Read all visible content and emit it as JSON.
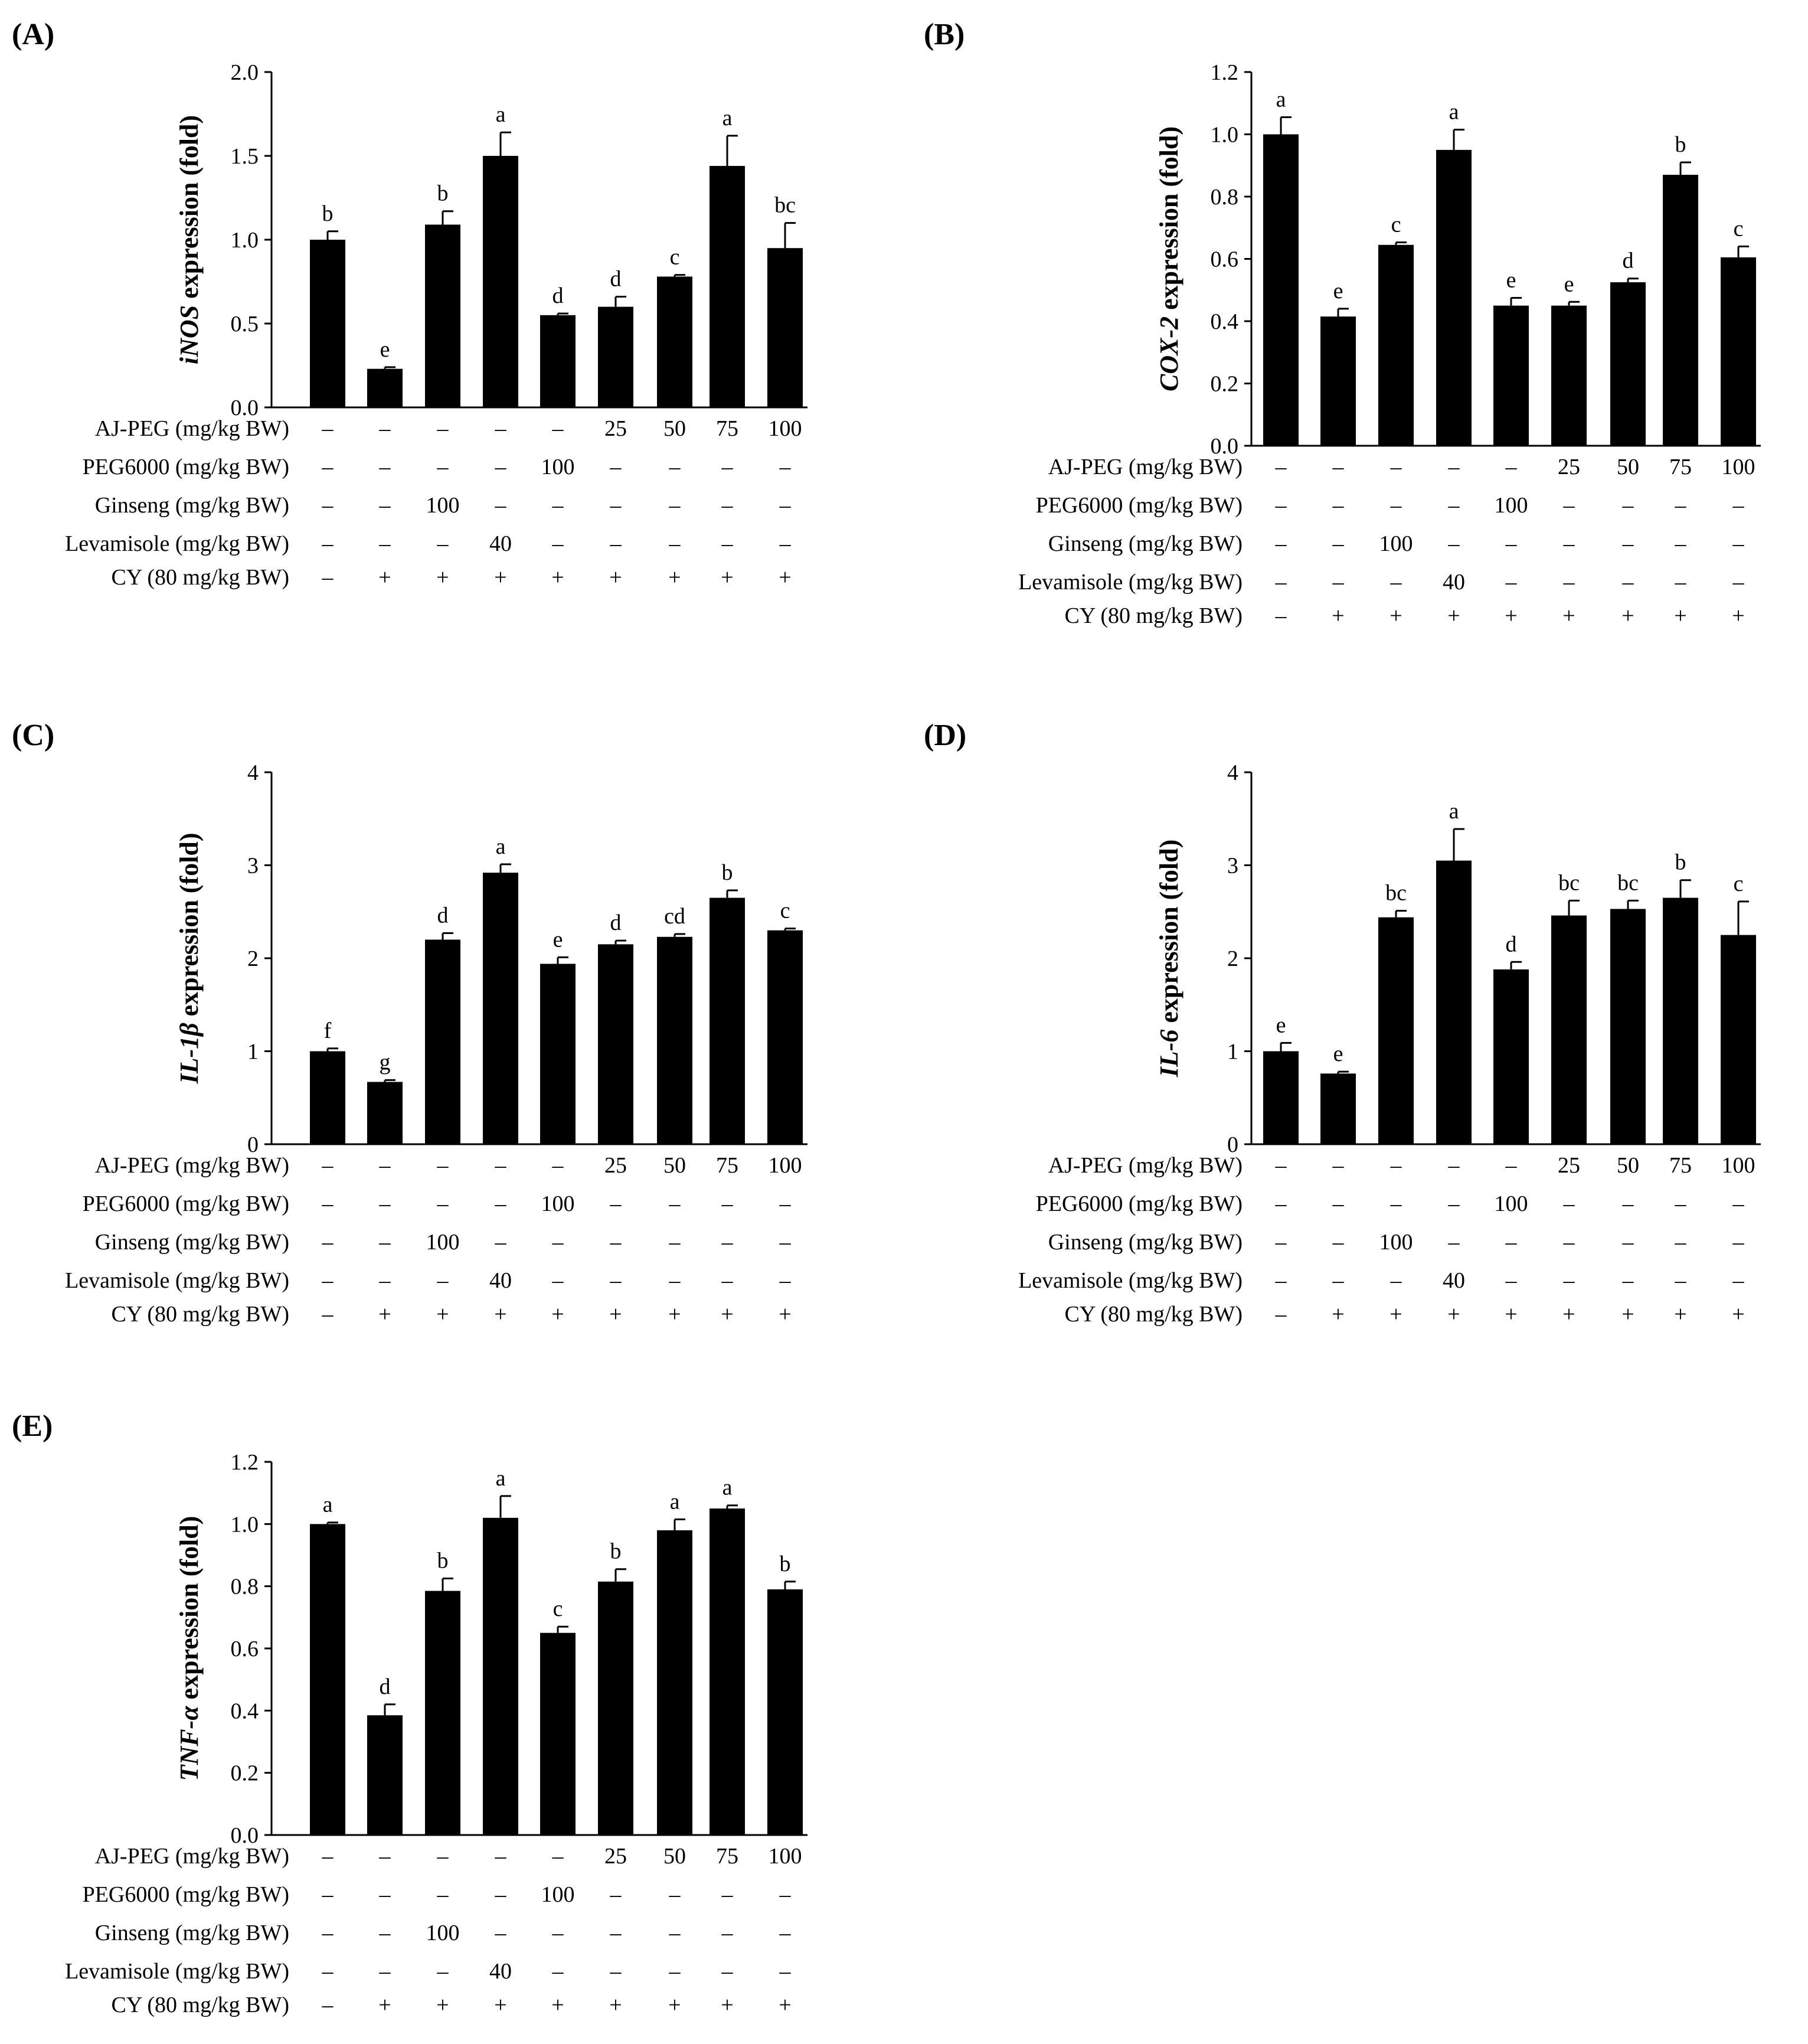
{
  "treatment_labels": [
    "AJ-PEG (mg/kg BW)",
    "PEG6000 (mg/kg BW)",
    "Ginseng (mg/kg BW)",
    "Levamisole (mg/kg BW)",
    "CY (80 mg/kg BW)"
  ],
  "treatment_table": [
    [
      "–",
      "–",
      "–",
      "–",
      "–",
      "25",
      "50",
      "75",
      "100"
    ],
    [
      "–",
      "–",
      "–",
      "–",
      "100",
      "–",
      "–",
      "–",
      "–"
    ],
    [
      "–",
      "–",
      "100",
      "–",
      "–",
      "–",
      "–",
      "–",
      "–"
    ],
    [
      "–",
      "–",
      "–",
      "40",
      "–",
      "–",
      "–",
      "–",
      "–"
    ],
    [
      "–",
      "+",
      "+",
      "+",
      "+",
      "+",
      "+",
      "+",
      "+"
    ]
  ],
  "chart_data": [
    {
      "panel": "(A)",
      "type": "bar",
      "ylabel_gene": "iNOS",
      "ylabel_rest": " expression (fold)",
      "ylim": [
        0,
        2.0
      ],
      "yticks": [
        "0.0",
        "0.5",
        "1.0",
        "1.5",
        "2.0"
      ],
      "values": [
        1.0,
        0.23,
        1.09,
        1.5,
        0.55,
        0.6,
        0.78,
        1.44,
        0.95
      ],
      "errors": [
        0.05,
        0.01,
        0.08,
        0.14,
        0.01,
        0.06,
        0.01,
        0.18,
        0.15
      ],
      "letters": [
        "b",
        "e",
        "b",
        "a",
        "d",
        "d",
        "c",
        "a",
        "bc"
      ]
    },
    {
      "panel": "(B)",
      "type": "bar",
      "ylabel_gene": "COX-2",
      "ylabel_rest": " expression (fold)",
      "ylim": [
        0,
        1.2
      ],
      "yticks": [
        "0.0",
        "0.2",
        "0.4",
        "0.6",
        "0.8",
        "1.0",
        "1.2"
      ],
      "values": [
        1.0,
        0.415,
        0.645,
        0.95,
        0.45,
        0.45,
        0.525,
        0.87,
        0.605
      ],
      "errors": [
        0.055,
        0.025,
        0.008,
        0.065,
        0.025,
        0.012,
        0.012,
        0.04,
        0.035
      ],
      "letters": [
        "a",
        "e",
        "c",
        "a",
        "e",
        "e",
        "d",
        "b",
        "c"
      ]
    },
    {
      "panel": "(C)",
      "type": "bar",
      "ylabel_gene": "IL-1β",
      "ylabel_rest": " expression (fold)",
      "ylim": [
        0,
        4
      ],
      "yticks": [
        "0",
        "1",
        "2",
        "3",
        "4"
      ],
      "values": [
        1.0,
        0.67,
        2.2,
        2.92,
        1.94,
        2.15,
        2.23,
        2.65,
        2.3
      ],
      "errors": [
        0.03,
        0.02,
        0.07,
        0.09,
        0.07,
        0.04,
        0.03,
        0.08,
        0.02
      ],
      "letters": [
        "f",
        "g",
        "d",
        "a",
        "e",
        "d",
        "cd",
        "b",
        "c"
      ]
    },
    {
      "panel": "(D)",
      "type": "bar",
      "ylabel_gene": "IL-6",
      "ylabel_rest": " expression (fold)",
      "ylim": [
        0,
        4
      ],
      "yticks": [
        "0",
        "1",
        "2",
        "3",
        "4"
      ],
      "values": [
        1.0,
        0.76,
        2.44,
        3.05,
        1.88,
        2.46,
        2.53,
        2.65,
        2.25
      ],
      "errors": [
        0.09,
        0.02,
        0.07,
        0.34,
        0.08,
        0.16,
        0.09,
        0.19,
        0.36
      ],
      "letters": [
        "e",
        "e",
        "bc",
        "a",
        "d",
        "bc",
        "bc",
        "b",
        "c"
      ]
    },
    {
      "panel": "(E)",
      "type": "bar",
      "ylabel_gene": "TNF-α",
      "ylabel_rest": " expression (fold)",
      "ylim": [
        0,
        1.2
      ],
      "yticks": [
        "0.0",
        "0.2",
        "0.4",
        "0.6",
        "0.8",
        "1.0",
        "1.2"
      ],
      "values": [
        1.0,
        0.385,
        0.785,
        1.02,
        0.65,
        0.815,
        0.98,
        1.05,
        0.79
      ],
      "errors": [
        0.005,
        0.035,
        0.04,
        0.07,
        0.02,
        0.04,
        0.035,
        0.01,
        0.025
      ],
      "letters": [
        "a",
        "d",
        "b",
        "a",
        "c",
        "b",
        "a",
        "a",
        "b"
      ]
    }
  ]
}
